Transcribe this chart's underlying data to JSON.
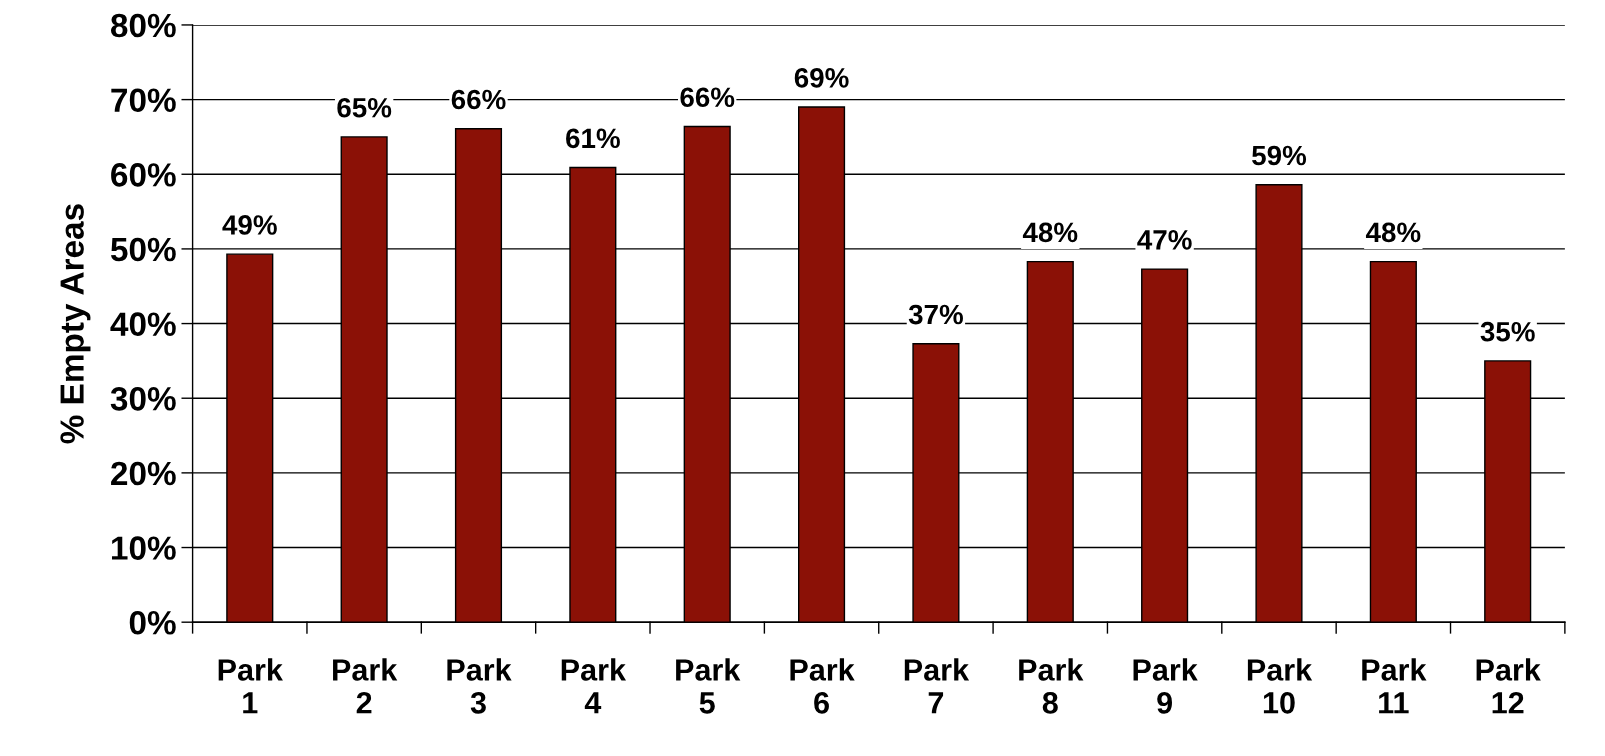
{
  "chart_data": {
    "type": "bar",
    "ylabel": "% Empty Areas",
    "categories": [
      "Park\n1",
      "Park\n2",
      "Park\n3",
      "Park\n4",
      "Park\n5",
      "Park\n6",
      "Park\n7",
      "Park\n8",
      "Park\n9",
      "Park\n10",
      "Park\n11",
      "Park\n12"
    ],
    "values": [
      49.3,
      65.0,
      66.1,
      60.9,
      66.4,
      69.0,
      37.3,
      48.3,
      47.3,
      58.6,
      48.3,
      35.0
    ],
    "value_labels": [
      "49%",
      "65%",
      "66%",
      "61%",
      "66%",
      "69%",
      "37%",
      "48%",
      "47%",
      "59%",
      "48%",
      "35%"
    ],
    "color": "#8b1106",
    "ylim": [
      0,
      80
    ],
    "yticks": [
      {
        "value": 0,
        "label": "0%"
      },
      {
        "value": 10,
        "label": "10%"
      },
      {
        "value": 20,
        "label": "20%"
      },
      {
        "value": 30,
        "label": "30%"
      },
      {
        "value": 40,
        "label": "40%"
      },
      {
        "value": 50,
        "label": "50%"
      },
      {
        "value": 60,
        "label": "60%"
      },
      {
        "value": 70,
        "label": "70%"
      },
      {
        "value": 80,
        "label": "80%"
      }
    ],
    "grid": "y",
    "legend": false
  }
}
